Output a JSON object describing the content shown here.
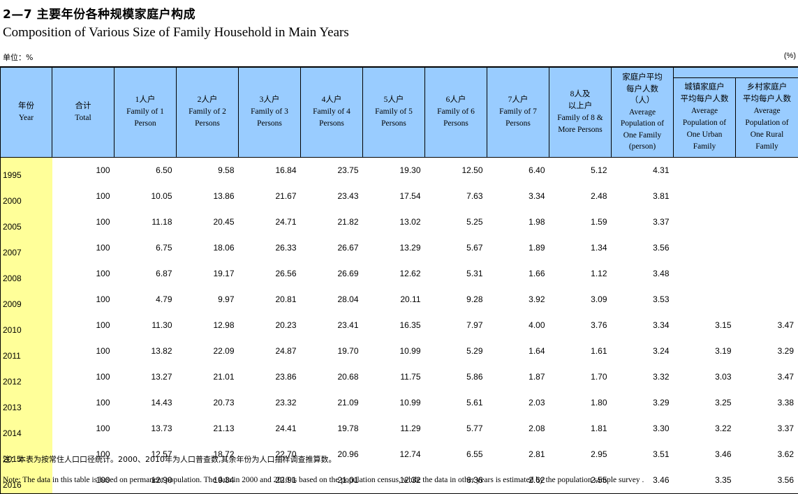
{
  "title_cn": "2—7 主要年份各种规模家庭户构成",
  "title_en": "Composition of Various Size of Family Household in Main Years",
  "unit_left": "单位：%",
  "unit_right": "(%)",
  "headers": {
    "year": {
      "cn": "年份",
      "en": "Year"
    },
    "total": {
      "cn": "合计",
      "en": "Total"
    },
    "p1": {
      "cn": "1人户",
      "en1": "Family of 1",
      "en2": "Person"
    },
    "p2": {
      "cn": "2人户",
      "en1": "Family of 2",
      "en2": "Persons"
    },
    "p3": {
      "cn": "3人户",
      "en1": "Family of 3",
      "en2": "Persons"
    },
    "p4": {
      "cn": "4人户",
      "en1": "Family of 4",
      "en2": "Persons"
    },
    "p5": {
      "cn": "5人户",
      "en1": "Family of 5",
      "en2": "Persons"
    },
    "p6": {
      "cn": "6人户",
      "en1": "Family of 6",
      "en2": "Persons"
    },
    "p7": {
      "cn": "7人户",
      "en1": "Family of 7",
      "en2": "Persons"
    },
    "p8": {
      "cn1": "8人及",
      "cn2": "以上户",
      "en1": "Family of 8 &",
      "en2": "More Persons"
    },
    "avg": {
      "cn1": "家庭户平均",
      "cn2": "每户人数",
      "cn3": "（人）",
      "en1": "Average",
      "en2": "Population of",
      "en3": "One Family",
      "en4": "(person)"
    },
    "urban": {
      "cn1": "城镇家庭户",
      "cn2": "平均每户人数",
      "en1": "Average",
      "en2": "Population of",
      "en3": "One Urban",
      "en4": "Family"
    },
    "rural": {
      "cn1": "乡村家庭户",
      "cn2": "平均每户人数",
      "en1": "Average",
      "en2": "Population of",
      "en3": "One Rural",
      "en4": "Family"
    }
  },
  "rows": [
    [
      "1995",
      "100",
      "6.50",
      "9.58",
      "16.84",
      "23.75",
      "19.30",
      "12.50",
      "6.40",
      "5.12",
      "4.31",
      "",
      ""
    ],
    [
      "2000",
      "100",
      "10.05",
      "13.86",
      "21.67",
      "23.43",
      "17.54",
      "7.63",
      "3.34",
      "2.48",
      "3.81",
      "",
      ""
    ],
    [
      "2005",
      "100",
      "11.18",
      "20.45",
      "24.71",
      "21.82",
      "13.02",
      "5.25",
      "1.98",
      "1.59",
      "3.37",
      "",
      ""
    ],
    [
      "2007",
      "100",
      "6.75",
      "18.06",
      "26.33",
      "26.67",
      "13.29",
      "5.67",
      "1.89",
      "1.34",
      "3.56",
      "",
      ""
    ],
    [
      "2008",
      "100",
      "6.87",
      "19.17",
      "26.56",
      "26.69",
      "12.62",
      "5.31",
      "1.66",
      "1.12",
      "3.48",
      "",
      ""
    ],
    [
      "2009",
      "100",
      "4.79",
      "9.97",
      "20.81",
      "28.04",
      "20.11",
      "9.28",
      "3.92",
      "3.09",
      "3.53",
      "",
      ""
    ],
    [
      "2010",
      "100",
      "11.30",
      "12.98",
      "20.23",
      "23.41",
      "16.35",
      "7.97",
      "4.00",
      "3.76",
      "3.34",
      "3.15",
      "3.47"
    ],
    [
      "2011",
      "100",
      "13.82",
      "22.09",
      "24.87",
      "19.70",
      "10.99",
      "5.29",
      "1.64",
      "1.61",
      "3.24",
      "3.19",
      "3.29"
    ],
    [
      "2012",
      "100",
      "13.27",
      "21.01",
      "23.86",
      "20.68",
      "11.75",
      "5.86",
      "1.87",
      "1.70",
      "3.32",
      "3.03",
      "3.47"
    ],
    [
      "2013",
      "100",
      "14.43",
      "20.73",
      "23.32",
      "21.09",
      "10.99",
      "5.61",
      "2.03",
      "1.80",
      "3.29",
      "3.25",
      "3.38"
    ],
    [
      "2014",
      "100",
      "13.73",
      "21.13",
      "24.41",
      "19.78",
      "11.29",
      "5.77",
      "2.08",
      "1.81",
      "3.30",
      "3.22",
      "3.37"
    ],
    [
      "2015",
      "100",
      "12.57",
      "18.72",
      "22.70",
      "20.96",
      "12.74",
      "6.55",
      "2.81",
      "2.95",
      "3.51",
      "3.46",
      "3.62"
    ],
    [
      "2016",
      "100",
      "12.90",
      "19.34",
      "22.91",
      "21.01",
      "12.32",
      "6.36",
      "2.62",
      "2.55",
      "3.46",
      "3.35",
      "3.56"
    ]
  ],
  "note_cn": "注：本表为按常住人口口径统计。2000、2010年为人口普查数,其余年份为人口抽样调查推算数。",
  "note_en": "Note:  The data in this table is based on permanent population. The data in 2000 and 2010 is based on the population census, while the data in other years is estimated by the population sample survey ."
}
